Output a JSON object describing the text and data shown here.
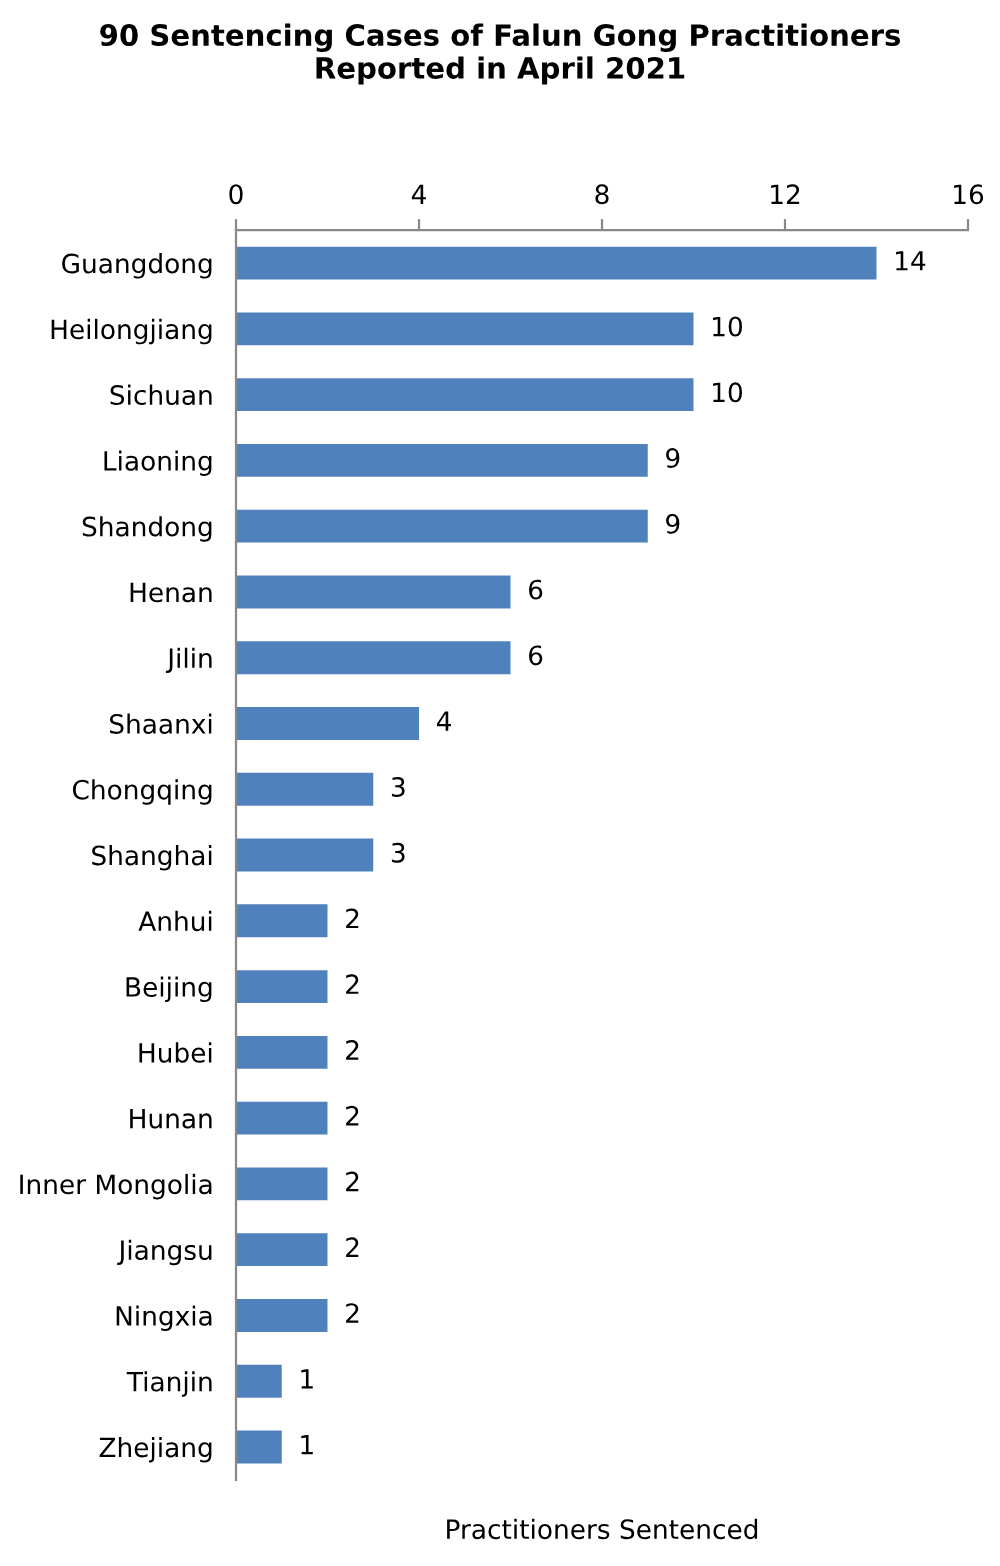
{
  "chart_data": {
    "type": "bar",
    "orientation": "horizontal",
    "title": "90 Sentencing Cases of Falun Gong Practitioners\nReported in April 2021",
    "xlabel": "Practitioners Sentenced",
    "categories": [
      "Guangdong",
      "Heilongjiang",
      "Sichuan",
      "Liaoning",
      "Shandong",
      "Henan",
      "Jilin",
      "Shaanxi",
      "Chongqing",
      "Shanghai",
      "Anhui",
      "Beijing",
      "Hubei",
      "Hunan",
      "Inner Mongolia",
      "Jiangsu",
      "Ningxia",
      "Tianjin",
      "Zhejiang"
    ],
    "values": [
      14,
      10,
      10,
      9,
      9,
      6,
      6,
      4,
      3,
      3,
      2,
      2,
      2,
      2,
      2,
      2,
      2,
      1,
      1
    ],
    "color": "#4f81bd",
    "xlim": [
      0,
      16
    ],
    "xticks": [
      0,
      4,
      8,
      12,
      16
    ],
    "grid": false,
    "data_labels": true
  }
}
